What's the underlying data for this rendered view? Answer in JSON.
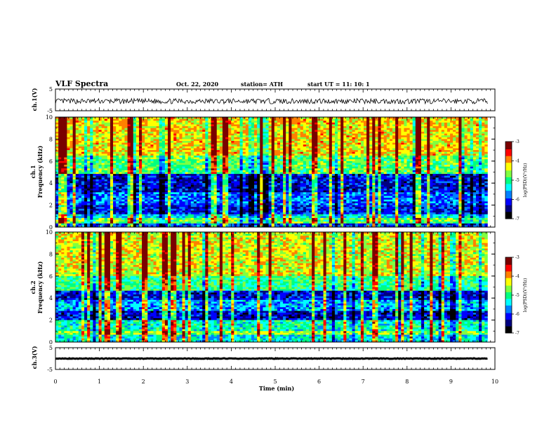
{
  "header": {
    "title": "VLF Spectra",
    "date": "Oct. 22, 2020",
    "station": "station= ATH",
    "start": "start  UT =    11: 10: 1"
  },
  "chart_data": [
    {
      "type": "line",
      "panel": "ch1-waveform",
      "ylabel": "ch.1(V)",
      "ylim": [
        -5,
        5
      ],
      "yticks": [
        "5",
        "-5"
      ],
      "x_range": [
        0,
        10
      ],
      "data_span": [
        0,
        9.83
      ],
      "mean": -0.6,
      "amplitude": 1.2,
      "color": "#000000"
    },
    {
      "type": "heatmap",
      "panel": "ch1-spectrogram",
      "ylabel": "ch.1",
      "ylabel2": "Frequency  (kHz)",
      "ylim": [
        0,
        10
      ],
      "yticks": [
        "0",
        "2",
        "4",
        "6",
        "8",
        "10"
      ],
      "x_range": [
        0,
        10
      ],
      "data_span": [
        0,
        9.83
      ],
      "z_range": [
        -7,
        -3
      ],
      "bands": [
        {
          "f": [
            0,
            0.4
          ],
          "level": 0.25
        },
        {
          "f": [
            0.4,
            0.8
          ],
          "level": 0.55
        },
        {
          "f": [
            0.8,
            1.2
          ],
          "level": 0.4
        },
        {
          "f": [
            1.2,
            2.0
          ],
          "level": 0.22
        },
        {
          "f": [
            2.0,
            3.2
          ],
          "level": 0.3
        },
        {
          "f": [
            3.2,
            4.8
          ],
          "level": 0.2
        },
        {
          "f": [
            4.8,
            6.5
          ],
          "level": 0.55
        },
        {
          "f": [
            6.5,
            10
          ],
          "level": 0.7
        }
      ]
    },
    {
      "type": "heatmap",
      "panel": "ch2-spectrogram",
      "ylabel": "ch.2",
      "ylabel2": "Frequency  (kHz)",
      "ylim": [
        0,
        10
      ],
      "yticks": [
        "0",
        "2",
        "4",
        "6",
        "8",
        "10"
      ],
      "x_range": [
        0,
        10
      ],
      "data_span": [
        0,
        9.83
      ],
      "z_range": [
        -7,
        -3
      ],
      "bands": [
        {
          "f": [
            0,
            0.6
          ],
          "level": 0.42
        },
        {
          "f": [
            0.6,
            1.0
          ],
          "level": 0.6
        },
        {
          "f": [
            1.0,
            2.0
          ],
          "level": 0.45
        },
        {
          "f": [
            2.0,
            2.8
          ],
          "level": 0.18
        },
        {
          "f": [
            2.8,
            3.8
          ],
          "level": 0.35
        },
        {
          "f": [
            3.8,
            4.6
          ],
          "level": 0.2
        },
        {
          "f": [
            4.6,
            6.0
          ],
          "level": 0.5
        },
        {
          "f": [
            6.0,
            10
          ],
          "level": 0.66
        }
      ]
    },
    {
      "type": "line",
      "panel": "ch3-waveform",
      "ylabel": "ch.3(V)",
      "ylim": [
        -5,
        5
      ],
      "yticks": [
        "5",
        "-5"
      ],
      "x_range": [
        0,
        10
      ],
      "data_span": [
        0,
        9.83
      ],
      "mean": 0,
      "amplitude": 0.15,
      "color": "#000000"
    }
  ],
  "xaxis": {
    "label": "Time  (min)",
    "ticks": [
      "0",
      "1",
      "2",
      "3",
      "4",
      "5",
      "6",
      "7",
      "8",
      "9",
      "10"
    ]
  },
  "colorbar": {
    "label": "log(PSD)(V²/Hz)",
    "ticks": [
      "-3",
      "-4",
      "-5",
      "-6",
      "-7"
    ],
    "colors": [
      "#7a0000",
      "#ff0000",
      "#ff8000",
      "#ffff00",
      "#80ff40",
      "#00ff80",
      "#00ffff",
      "#0080ff",
      "#0000ff",
      "#000080",
      "#000000"
    ]
  }
}
